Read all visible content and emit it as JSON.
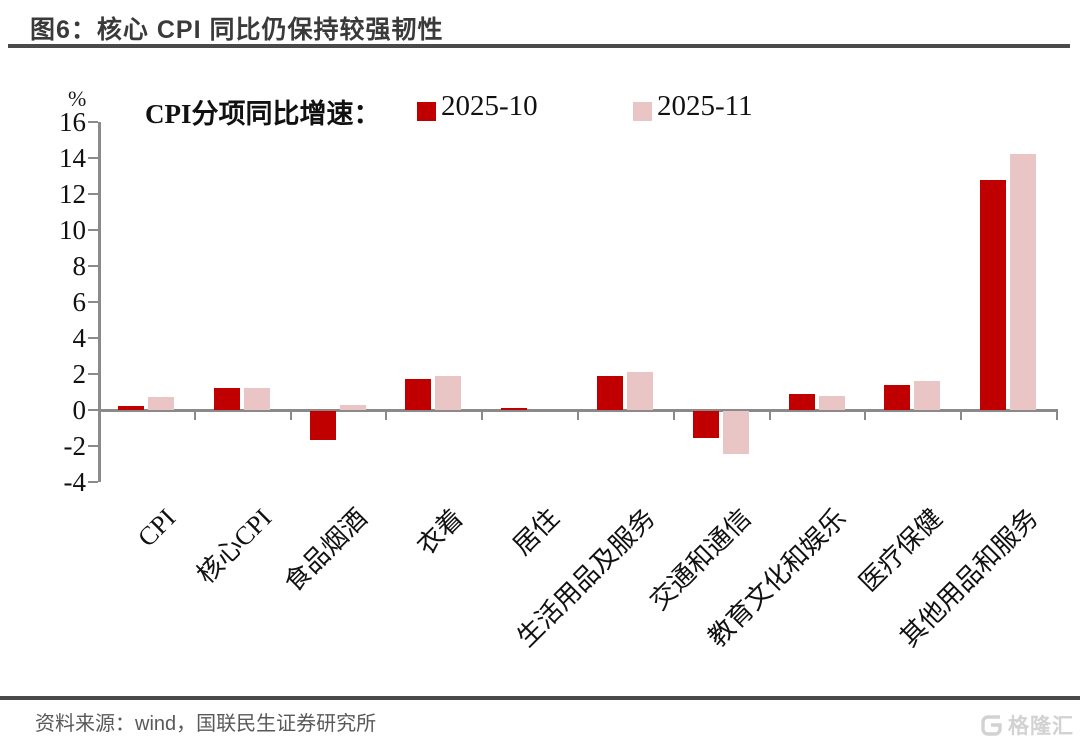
{
  "title": "图6：核心 CPI 同比仍保持较强韧性",
  "legend": {
    "label": "CPI分项同比增速：",
    "series1_label": "2025-10",
    "series2_label": "2025-11"
  },
  "unit_label": "%",
  "footer": {
    "source": "资料来源：wind，国联民生证券研究所",
    "logo_text": "格隆汇"
  },
  "colors": {
    "series1": "#C00000",
    "series2": "#EAC5C5",
    "axis": "#8A8A8A",
    "title_text": "#3A3A3A",
    "rule": "#4A4A4A",
    "footer_text": "#595959",
    "logo": "#D2D2D2"
  },
  "chart_data": {
    "type": "bar",
    "title": "CPI分项同比增速",
    "ylabel": "%",
    "ylim": [
      -4,
      16
    ],
    "ytick_step": 2,
    "grid": false,
    "legend_position": "top",
    "categories": [
      "CPI",
      "核心CPI",
      "食品烟酒",
      "衣着",
      "居住",
      "生活用品及服务",
      "交通和通信",
      "教育文化和娱乐",
      "医疗保健",
      "其他用品和服务"
    ],
    "series": [
      {
        "name": "2025-10",
        "color": "#C00000",
        "values": [
          0.2,
          1.2,
          -1.6,
          1.7,
          0.1,
          1.9,
          -1.5,
          0.9,
          1.4,
          12.8
        ]
      },
      {
        "name": "2025-11",
        "color": "#EAC5C5",
        "values": [
          0.7,
          1.2,
          0.3,
          1.9,
          0.0,
          2.1,
          -2.4,
          0.8,
          1.6,
          14.2
        ]
      }
    ]
  }
}
